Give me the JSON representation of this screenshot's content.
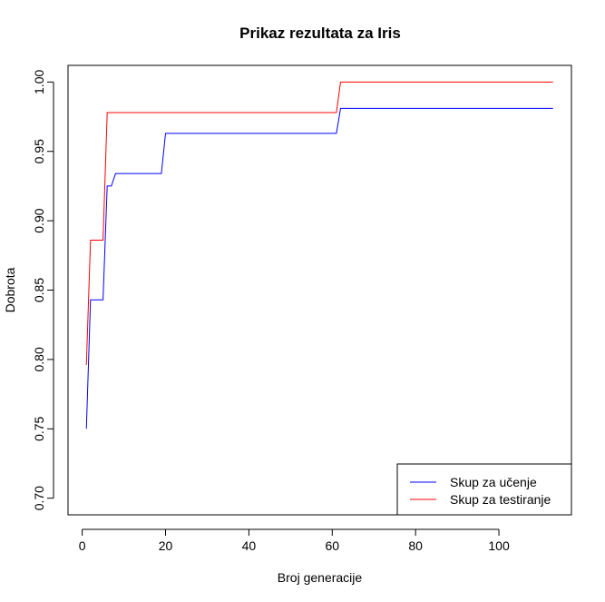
{
  "chart_data": {
    "type": "line",
    "title": "Prikaz rezultata za Iris",
    "xlabel": "Broj generacije",
    "ylabel": "Dobrota",
    "xlim": [
      -3.4,
      117.4
    ],
    "ylim": [
      0.688,
      1.012
    ],
    "xticks": [
      0,
      20,
      40,
      60,
      80,
      100
    ],
    "yticks": [
      0.7,
      0.75,
      0.8,
      0.85,
      0.9,
      0.95,
      1.0
    ],
    "xtick_labels": [
      "0",
      "20",
      "40",
      "60",
      "80",
      "100"
    ],
    "ytick_labels": [
      "0.70",
      "0.75",
      "0.80",
      "0.85",
      "0.90",
      "0.95",
      "1.00"
    ],
    "legend_position": "bottom-right",
    "series": [
      {
        "name": "Skup za učenje",
        "color": "#0000ff",
        "points": [
          [
            1,
            0.75
          ],
          [
            2,
            0.843
          ],
          [
            5,
            0.843
          ],
          [
            6,
            0.925
          ],
          [
            7,
            0.925
          ],
          [
            8,
            0.934
          ],
          [
            19,
            0.934
          ],
          [
            20,
            0.963
          ],
          [
            61,
            0.963
          ],
          [
            62,
            0.981
          ],
          [
            113,
            0.981
          ]
        ]
      },
      {
        "name": "Skup za testiranje",
        "color": "#ff0000",
        "points": [
          [
            1,
            0.796
          ],
          [
            2,
            0.886
          ],
          [
            5,
            0.886
          ],
          [
            6,
            0.978
          ],
          [
            61,
            0.978
          ],
          [
            62,
            1.0
          ],
          [
            113,
            1.0
          ]
        ]
      }
    ]
  }
}
